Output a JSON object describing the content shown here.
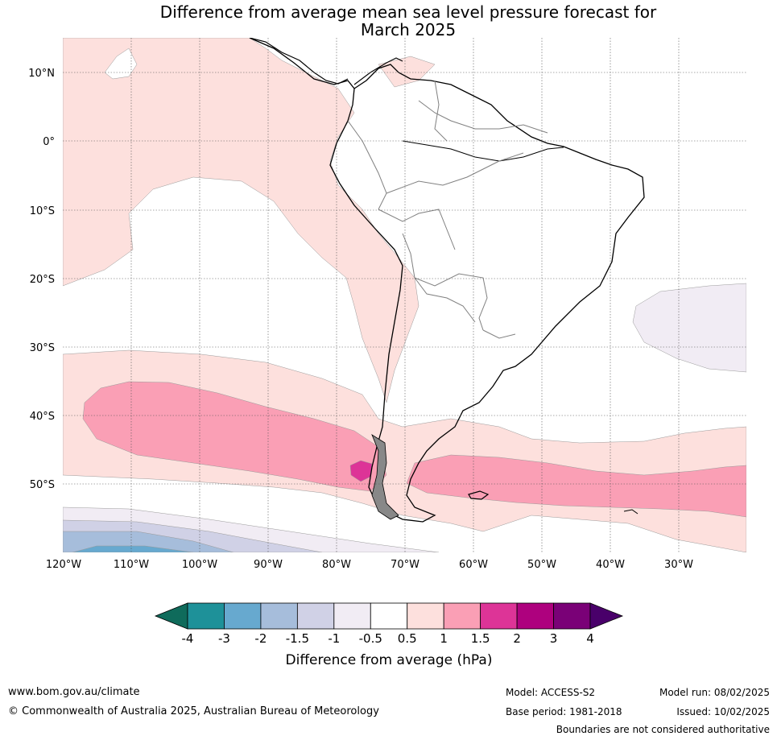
{
  "title_line1": "Difference from average mean sea level pressure forecast for",
  "title_line2": "March 2025",
  "lat_labels": [
    "10°N",
    "0°",
    "10°S",
    "20°S",
    "30°S",
    "40°S",
    "50°S"
  ],
  "lon_labels": [
    "120°W",
    "110°W",
    "100°W",
    "90°W",
    "80°W",
    "70°W",
    "60°W",
    "50°W",
    "40°W",
    "30°W"
  ],
  "colorbar": {
    "label": "Difference from average (hPa)",
    "ticks": [
      "-4",
      "-3",
      "-2",
      "-1.5",
      "-1",
      "-0.5",
      "0.5",
      "1",
      "1.5",
      "2",
      "3",
      "4"
    ],
    "colors": [
      "#0f6b5b",
      "#1e9199",
      "#67a9cf",
      "#a6bddb",
      "#d0d1e6",
      "#f1ecf4",
      "#ffffff",
      "#fde0dd",
      "#fa9fb5",
      "#dd3497",
      "#ae017e",
      "#7a0177",
      "#49006a"
    ]
  },
  "footer": {
    "website": "www.bom.gov.au/climate",
    "copyright": "© Commonwealth of Australia 2025, Australian Bureau of Meteorology",
    "model": "Model: ACCESS-S2",
    "base_period": "Base period: 1981-2018",
    "model_run": "Model run: 08/02/2025",
    "issued": "Issued: 10/02/2025",
    "disclaimer": "Boundaries are not considered authoritative"
  }
}
